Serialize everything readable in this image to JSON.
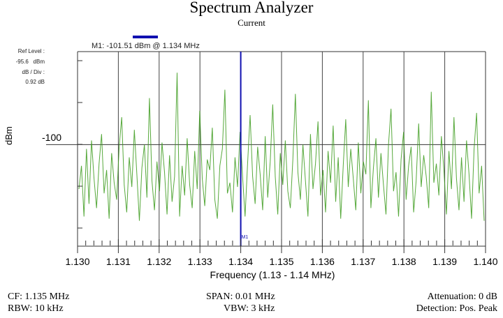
{
  "header": {
    "title": "Spectrum Analyzer",
    "subtitle": "Current"
  },
  "ref_panel": {
    "ref_level_label": "Ref Level :",
    "ref_level_value": "-95.6   dBm",
    "db_div_label": "dB / Div :",
    "db_div_value": "0.92 dB"
  },
  "marker": {
    "readout": "M1: -101.51 dBm @ 1.134 MHz",
    "label": "M1",
    "frequency": 1.134,
    "level": -101.51,
    "color": "#1010b0"
  },
  "footer": {
    "cf": "CF: 1.135 MHz",
    "rbw": "RBW: 10 kHz",
    "span": "SPAN: 0.01 MHz",
    "vbw": "VBW: 3 kHz",
    "attenuation": "Attenuation: 0 dB",
    "detection": "Detection: Pos. Peak"
  },
  "chart_data": {
    "type": "line",
    "title": "Spectrum Analyzer",
    "subtitle": "Current",
    "xlabel": "Frequency (1.13 - 1.14 MHz)",
    "ylabel": "dBm",
    "xlim": [
      1.13,
      1.14
    ],
    "ylim": [
      -104.8,
      -95.6
    ],
    "x_ticks": [
      "1.130",
      "1.131",
      "1.132",
      "1.133",
      "1.134",
      "1.135",
      "1.136",
      "1.137",
      "1.138",
      "1.139",
      "1.140"
    ],
    "y_ticks": [
      {
        "value": -100,
        "label": "-100"
      }
    ],
    "grid": true,
    "trace_color": "#3a9a1a",
    "series": [
      {
        "name": "Current",
        "values": [
          -102.1,
          -101.0,
          -103.4,
          -100.2,
          -102.8,
          -99.8,
          -101.6,
          -103.0,
          -100.9,
          -99.5,
          -102.3,
          -101.2,
          -103.5,
          -100.4,
          -101.8,
          -102.6,
          -100.1,
          -98.7,
          -101.9,
          -103.2,
          -100.6,
          -102.0,
          -99.3,
          -101.4,
          -103.6,
          -101.1,
          -100.0,
          -102.5,
          -97.8,
          -101.7,
          -103.1,
          -100.8,
          -102.2,
          -99.9,
          -101.3,
          -103.3,
          -100.5,
          -102.7,
          -101.5,
          -96.6,
          -103.4,
          -101.0,
          -102.4,
          -99.7,
          -101.9,
          -103.0,
          -100.3,
          -102.1,
          -98.4,
          -101.6,
          -102.9,
          -100.7,
          -101.2,
          -99.2,
          -102.6,
          -103.5,
          -101.0,
          -100.2,
          -97.4,
          -102.3,
          -101.8,
          -103.2,
          -100.6,
          -102.0,
          -99.4,
          -101.5,
          -103.4,
          -100.9,
          -98.6,
          -101.5,
          -102.8,
          -100.1,
          -101.4,
          -103.1,
          -99.6,
          -102.5,
          -100.8,
          -98.1,
          -101.51,
          -103.3,
          -100.4,
          -101.9,
          -99.8,
          -102.2,
          -103.0,
          -100.7,
          -97.6,
          -101.3,
          -102.6,
          -100.0,
          -101.7,
          -103.4,
          -99.5,
          -102.1,
          -100.9,
          -98.9,
          -102.4,
          -101.2,
          -103.2,
          -100.3,
          -101.8,
          -99.1,
          -102.7,
          -100.6,
          -103.5,
          -101.0,
          -98.8,
          -102.0,
          -100.2,
          -101.6,
          -103.1,
          -99.9,
          -102.3,
          -100.8,
          -101.4,
          -97.9,
          -103.0,
          -101.1,
          -99.7,
          -102.5,
          -100.4,
          -101.9,
          -103.3,
          -100.0,
          -98.3,
          -102.2,
          -101.3,
          -103.4,
          -100.7,
          -99.4,
          -102.6,
          -101.0,
          -100.1,
          -103.2,
          -101.7,
          -99.0,
          -102.0,
          -100.5,
          -101.5,
          -103.0,
          -97.5,
          -101.8,
          -100.9,
          -102.4,
          -99.6,
          -101.2,
          -103.3,
          -100.3,
          -102.1,
          -98.7,
          -101.6,
          -103.1,
          -100.6,
          -102.7,
          -99.8,
          -101.4,
          -103.5,
          -100.2,
          -98.5,
          -102.3,
          -101.0,
          -103.6
        ]
      }
    ]
  }
}
